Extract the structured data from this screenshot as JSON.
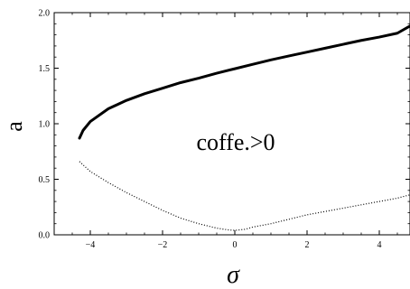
{
  "chart_data": {
    "type": "line",
    "xlabel": "σ",
    "ylabel": "a",
    "xlim": [
      -5.0,
      4.85
    ],
    "ylim": [
      0.0,
      2.0
    ],
    "x_ticks": [
      -4,
      -2,
      0,
      2,
      4
    ],
    "x_tick_labels": [
      "−4",
      "−2",
      "0",
      "2",
      "4"
    ],
    "y_ticks": [
      0.0,
      0.5,
      1.0,
      1.5,
      2.0
    ],
    "y_tick_labels": [
      "0.0",
      "0.5",
      "1.0",
      "1.5",
      "2.0"
    ],
    "minor_ticks": true,
    "grid": false,
    "annotation": "coffe.>0",
    "series": [
      {
        "style": "solid-thick",
        "color": "#000000",
        "x": [
          -4.3,
          -4.2,
          -4.0,
          -3.5,
          -3.0,
          -2.5,
          -2.0,
          -1.5,
          -1.0,
          -0.5,
          0.0,
          0.5,
          1.0,
          1.5,
          2.0,
          2.5,
          3.0,
          3.5,
          4.0,
          4.5,
          4.85
        ],
        "y": [
          0.87,
          0.94,
          1.02,
          1.135,
          1.21,
          1.27,
          1.32,
          1.37,
          1.41,
          1.455,
          1.495,
          1.535,
          1.575,
          1.61,
          1.645,
          1.68,
          1.715,
          1.75,
          1.78,
          1.815,
          1.88
        ]
      },
      {
        "style": "dotted",
        "color": "#000000",
        "x": [
          -4.3,
          -4.0,
          -3.5,
          -3.0,
          -2.5,
          -2.0,
          -1.5,
          -1.0,
          -0.5,
          -0.2,
          0.0,
          0.3,
          0.5,
          1.0,
          1.5,
          2.0,
          2.5,
          3.0,
          3.5,
          4.0,
          4.5,
          4.85
        ],
        "y": [
          0.66,
          0.57,
          0.47,
          0.38,
          0.3,
          0.22,
          0.15,
          0.1,
          0.06,
          0.045,
          0.04,
          0.05,
          0.07,
          0.1,
          0.14,
          0.18,
          0.21,
          0.24,
          0.27,
          0.3,
          0.33,
          0.36
        ]
      }
    ]
  }
}
